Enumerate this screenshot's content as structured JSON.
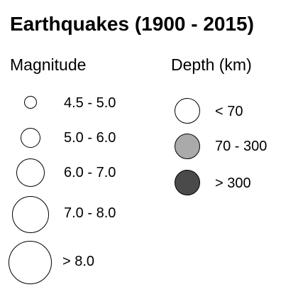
{
  "legend": {
    "title": "Earthquakes (1900 - 2015)",
    "magnitude": {
      "heading": "Magnitude",
      "items": [
        {
          "label": "4.5 - 5.0"
        },
        {
          "label": "5.0 - 6.0"
        },
        {
          "label": "6.0 - 7.0"
        },
        {
          "label": "7.0 - 8.0"
        },
        {
          "label": "> 8.0"
        }
      ]
    },
    "depth": {
      "heading": "Depth (km)",
      "items": [
        {
          "label": "< 70",
          "color": "#ffffff"
        },
        {
          "label": "70 - 300",
          "color": "#aaaaaa"
        },
        {
          "label": "> 300",
          "color": "#4a4a4a"
        }
      ]
    }
  }
}
